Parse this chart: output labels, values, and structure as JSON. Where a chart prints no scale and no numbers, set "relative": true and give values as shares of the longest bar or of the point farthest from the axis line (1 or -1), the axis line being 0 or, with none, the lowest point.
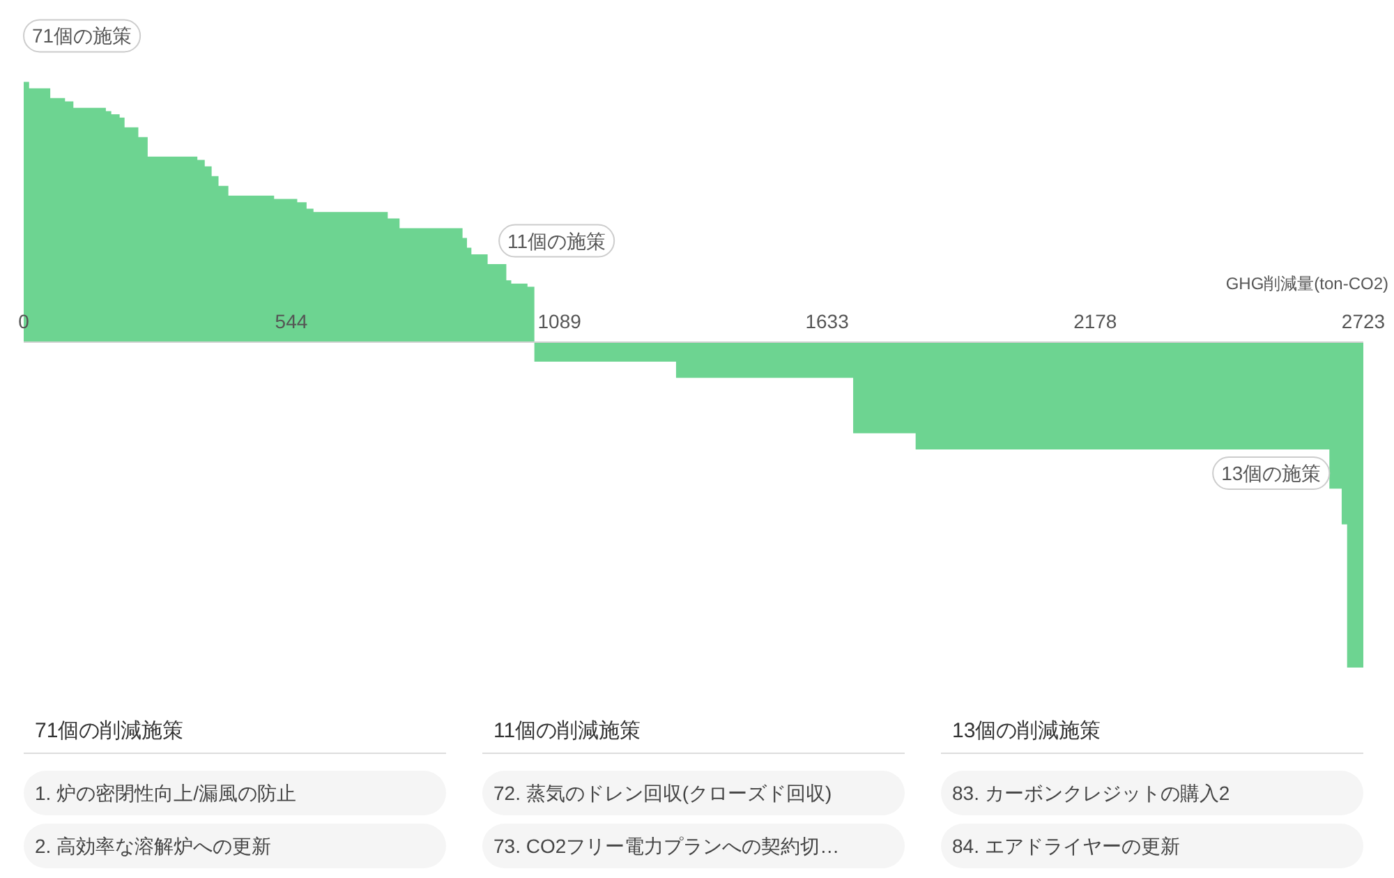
{
  "chart_data": [
    {
      "type": "area",
      "xlabel": "GHG削減量(ton-CO2)",
      "relative": true,
      "color": "#6dd491",
      "xlim": [
        0,
        2723
      ],
      "xticks": [
        0,
        544,
        1089,
        1633,
        2178,
        2723
      ],
      "x": [
        0,
        11,
        11,
        54,
        54,
        84,
        84,
        101,
        101,
        167,
        167,
        178,
        178,
        195,
        195,
        205,
        205,
        233,
        233,
        252,
        252,
        353,
        353,
        368,
        368,
        382,
        382,
        396,
        396,
        416,
        416,
        509,
        509,
        556,
        556,
        575,
        575,
        589,
        589,
        740,
        740,
        764,
        764,
        892,
        892,
        901,
        901,
        910,
        910,
        943,
        943,
        981,
        981,
        991,
        991,
        1024,
        1024,
        1038,
        1038,
        1326,
        1326,
        1686,
        1686,
        1813,
        1813,
        2654,
        2654,
        2679,
        2679,
        2690,
        2690,
        2723
      ],
      "values": [
        0.8,
        0.8,
        0.78,
        0.78,
        0.75,
        0.75,
        0.74,
        0.74,
        0.72,
        0.72,
        0.71,
        0.71,
        0.7,
        0.7,
        0.69,
        0.69,
        0.66,
        0.66,
        0.63,
        0.63,
        0.57,
        0.57,
        0.56,
        0.56,
        0.54,
        0.54,
        0.51,
        0.51,
        0.48,
        0.48,
        0.45,
        0.45,
        0.44,
        0.44,
        0.43,
        0.43,
        0.41,
        0.41,
        0.4,
        0.4,
        0.38,
        0.38,
        0.35,
        0.35,
        0.32,
        0.32,
        0.29,
        0.29,
        0.27,
        0.27,
        0.24,
        0.24,
        0.19,
        0.19,
        0.18,
        0.18,
        0.17,
        0.17,
        -0.06,
        -0.06,
        -0.11,
        -0.11,
        -0.28,
        -0.28,
        -0.33,
        -0.33,
        -0.45,
        -0.45,
        -0.56,
        -0.56,
        -1,
        -1
      ],
      "annotations": [
        {
          "text": "71個の施策",
          "x": 0,
          "y": 0.8
        },
        {
          "text": "11個の施策",
          "x": 1038,
          "y": 0.17
        },
        {
          "text": "13個の施策",
          "x": 2654,
          "y": -0.33
        }
      ]
    },
    {
      "type": "other",
      "title": "71個の削減施策",
      "annotations": [
        "1. 炉の密閉性向上/漏風の防止",
        "2. 高効率な溶解炉への更新"
      ]
    },
    {
      "type": "other",
      "title": "11個の削減施策",
      "annotations": [
        "72. 蒸気のドレン回収(クローズド回収)",
        "73. CO2フリー電力プランへの契約切…"
      ]
    },
    {
      "type": "other",
      "title": "13個の削減施策",
      "annotations": [
        "83. カーボンクレジットの購入2",
        "84. エアドライヤーの更新"
      ]
    }
  ]
}
